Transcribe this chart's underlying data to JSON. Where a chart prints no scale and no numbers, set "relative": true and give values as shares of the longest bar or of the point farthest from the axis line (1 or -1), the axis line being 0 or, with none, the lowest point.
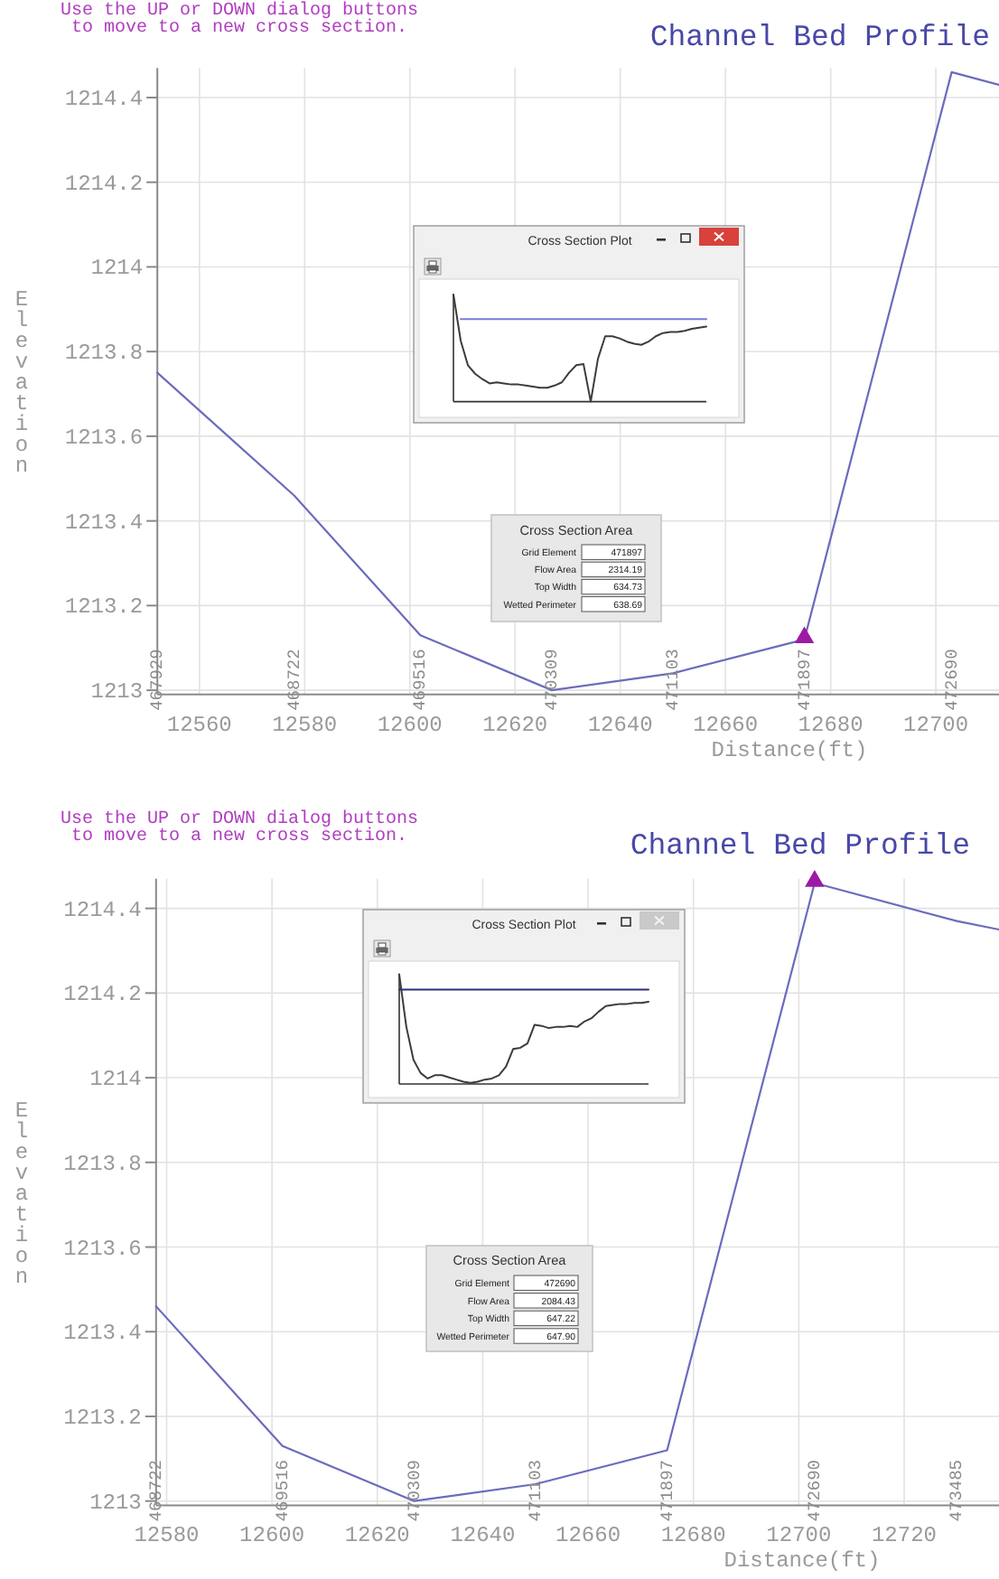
{
  "chart_data": [
    {
      "type": "line",
      "title": "Channel Bed Profile",
      "xlabel": "Distance(ft)",
      "ylabel": "Elevation",
      "xlim": [
        12552,
        12712
      ],
      "xticks": [
        12560,
        12580,
        12600,
        12620,
        12640,
        12660,
        12680,
        12700
      ],
      "ylim": [
        1212.99,
        1214.47
      ],
      "yticks": [
        1213,
        1213.2,
        1213.4,
        1213.6,
        1213.8,
        1214,
        1214.2,
        1214.4
      ],
      "grid": true,
      "series": [
        {
          "type": "line",
          "color": "#6b6bbd",
          "x": [
            12552,
            12578,
            12602,
            12627,
            12650,
            12675,
            12703,
            12712
          ],
          "values": [
            1213.75,
            1213.46,
            1213.13,
            1213.0,
            1213.04,
            1213.12,
            1214.46,
            1214.43
          ]
        },
        {
          "type": "scatter",
          "marker": "triangle",
          "color": "#9c1aa6",
          "x": [
            12675
          ],
          "values": [
            1213.12
          ]
        }
      ],
      "annotations": [
        "Use the UP or DOWN dialog buttons\n to move to a new cross section.",
        "467929",
        "468722",
        "469516",
        "470309",
        "471103",
        "471897",
        "472690"
      ]
    },
    {
      "type": "line",
      "title": "Cross Section Plot",
      "relative": true,
      "categories": [
        null,
        null,
        null,
        null,
        null,
        null,
        null,
        null,
        null,
        null,
        null,
        null,
        null,
        null,
        null,
        null,
        null,
        null,
        null,
        null,
        null,
        null,
        null,
        null,
        null,
        null,
        null,
        null,
        null,
        null,
        null,
        null,
        null,
        null,
        null,
        null
      ],
      "series": [
        {
          "color": "#3c3c3c",
          "values": [
            1.0,
            0.57,
            0.34,
            0.26,
            0.21,
            0.17,
            0.18,
            0.17,
            0.16,
            0.16,
            0.15,
            0.14,
            0.13,
            0.13,
            0.15,
            0.18,
            0.27,
            0.34,
            0.35,
            0.0,
            0.4,
            0.61,
            0.61,
            0.59,
            0.56,
            0.54,
            0.53,
            0.56,
            0.61,
            0.64,
            0.65,
            0.65,
            0.66,
            0.68,
            0.69,
            0.7
          ]
        },
        {
          "color": "#7a7ade",
          "values": [
            null,
            0.77,
            0.77,
            0.77,
            0.77,
            0.77,
            0.77,
            0.77,
            0.77,
            0.77,
            0.77,
            0.77,
            0.77,
            0.77,
            0.77,
            0.77,
            0.77,
            0.77,
            0.77,
            0.77,
            0.77,
            0.77,
            0.77,
            0.77,
            0.77,
            0.77,
            0.77,
            0.77,
            0.77,
            0.77,
            0.77,
            0.77,
            0.77,
            0.77,
            0.77,
            0.77
          ]
        }
      ]
    },
    {
      "type": "other",
      "title": "Cross Section Area",
      "annotations": [
        "Grid Element",
        "471897",
        "Flow Area",
        "2314.19",
        "Top Width",
        "634.73",
        "Wetted Perimeter",
        "638.69"
      ]
    },
    {
      "type": "line",
      "title": "Channel Bed Profile",
      "xlabel": "Distance(ft)",
      "ylabel": "Elevation",
      "xlim": [
        12578,
        12738
      ],
      "xticks": [
        12580,
        12600,
        12620,
        12640,
        12660,
        12680,
        12700,
        12720
      ],
      "ylim": [
        1212.99,
        1214.47
      ],
      "yticks": [
        1213,
        1213.2,
        1213.4,
        1213.6,
        1213.8,
        1214,
        1214.2,
        1214.4
      ],
      "grid": true,
      "series": [
        {
          "type": "line",
          "color": "#6b6bbd",
          "x": [
            12578,
            12602,
            12627,
            12650,
            12675,
            12703,
            12730,
            12738
          ],
          "values": [
            1213.46,
            1213.13,
            1213.0,
            1213.04,
            1213.12,
            1214.46,
            1214.37,
            1214.35
          ]
        },
        {
          "type": "scatter",
          "marker": "triangle",
          "color": "#9c1aa6",
          "x": [
            12703
          ],
          "values": [
            1214.46
          ]
        }
      ],
      "annotations": [
        "Use the UP or DOWN dialog buttons\n to move to a new cross section.",
        "468722",
        "469516",
        "470309",
        "471103",
        "471897",
        "472690",
        "473485"
      ]
    },
    {
      "type": "line",
      "title": "Cross Section Plot",
      "relative": true,
      "categories": [
        null,
        null,
        null,
        null,
        null,
        null,
        null,
        null,
        null,
        null,
        null,
        null,
        null,
        null,
        null,
        null,
        null,
        null,
        null,
        null,
        null,
        null,
        null,
        null,
        null,
        null,
        null,
        null,
        null,
        null,
        null,
        null,
        null,
        null,
        null,
        null
      ],
      "series": [
        {
          "color": "#3c3c3c",
          "values": [
            1.0,
            0.52,
            0.22,
            0.1,
            0.05,
            0.08,
            0.08,
            0.06,
            0.04,
            0.02,
            0.01,
            0.02,
            0.04,
            0.05,
            0.08,
            0.16,
            0.32,
            0.33,
            0.37,
            0.54,
            0.53,
            0.51,
            0.52,
            0.52,
            0.53,
            0.52,
            0.57,
            0.6,
            0.66,
            0.71,
            0.72,
            0.73,
            0.73,
            0.74,
            0.74,
            0.75
          ]
        },
        {
          "color": "#2e2e7a",
          "values": [
            0.86,
            0.86,
            0.86,
            0.86,
            0.86,
            0.86,
            0.86,
            0.86,
            0.86,
            0.86,
            0.86,
            0.86,
            0.86,
            0.86,
            0.86,
            0.86,
            0.86,
            0.86,
            0.86,
            0.86,
            0.86,
            0.86,
            0.86,
            0.86,
            0.86,
            0.86,
            0.86,
            0.86,
            0.86,
            0.86,
            0.86,
            0.86,
            0.86,
            0.86,
            0.86,
            0.86
          ]
        }
      ]
    },
    {
      "type": "other",
      "title": "Cross Section Area",
      "annotations": [
        "Grid Element",
        "472690",
        "Flow Area",
        "2084.43",
        "Top Width",
        "647.22",
        "Wetted Perimeter",
        "647.90"
      ]
    }
  ]
}
